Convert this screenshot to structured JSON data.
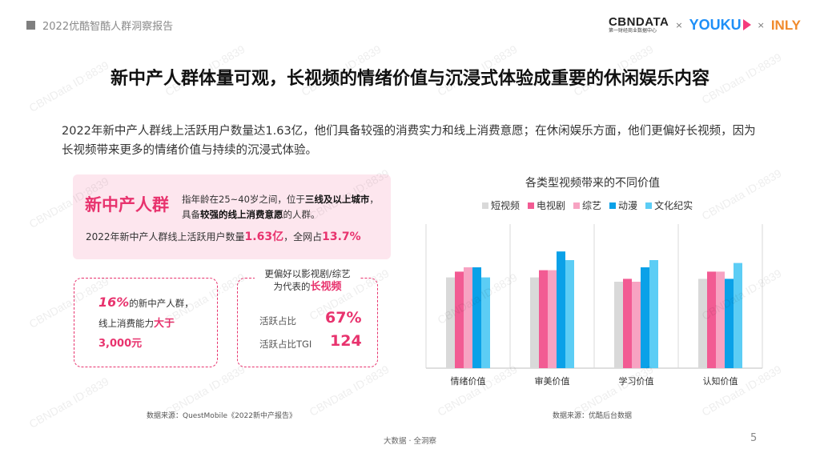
{
  "header": {
    "report_title": "2022优酷智酷人群洞察报告",
    "logos": {
      "cbndata": "CBNDATA",
      "cbndata_sub": "第一财经商业数据中心",
      "times": "×",
      "youku": "YOUKU",
      "inly": "INLY"
    }
  },
  "title": "新中产人群体量可观，长视频的情绪价值与沉浸式体验成重要的休闲娱乐内容",
  "intro": "2022年新中产人群线上活跃用户数量达1.63亿，他们具备较强的消费实力和线上消费意愿；在休闲娱乐方面，他们更偏好长视频，因为长视频带来更多的情绪价值与持续的沉浸式体验。",
  "profile": {
    "title": "新中产人群",
    "desc_1": "指年龄在25~40岁之间，位于",
    "desc_bold_1": "三线及以上城市",
    "desc_2": "，具备",
    "desc_bold_2": "较强的线上消费意愿",
    "desc_3": "的人群。",
    "stat_prefix": "2022年新中产人群线上活跃用户数量",
    "stat_value": "1.63亿",
    "stat_mid": "，全网占",
    "stat_share": "13.7%"
  },
  "box_left": {
    "pct": "16%",
    "line1": "的新中产人群，",
    "line2": "线上消费能力",
    "highlight": "大于",
    "amount": "3,000元"
  },
  "box_right": {
    "head_line1": "更偏好以影视剧/综艺",
    "head_line2": "为代表的",
    "head_highlight": "长视频",
    "metrics": [
      {
        "label": "活跃占比",
        "value": "67%"
      },
      {
        "label": "活跃占比TGI",
        "value": "124"
      }
    ]
  },
  "sources": {
    "left": "数据来源：QuestMobile《2022新中产报告》",
    "right": "数据来源：优酷后台数据"
  },
  "chart_data": {
    "type": "bar",
    "title": "各类型视频带来的不同价值",
    "categories": [
      "情绪价值",
      "审美价值",
      "学习价值",
      "认知价值"
    ],
    "series": [
      {
        "name": "短视频",
        "color": "#d9d9d9",
        "values": [
          63,
          63,
          60,
          62
        ]
      },
      {
        "name": "电视剧",
        "color": "#f25b93",
        "values": [
          67,
          68,
          62,
          67
        ]
      },
      {
        "name": "综艺",
        "color": "#f7a3c2",
        "values": [
          70,
          68,
          60,
          67
        ]
      },
      {
        "name": "动漫",
        "color": "#0aa1e8",
        "values": [
          70,
          81,
          70,
          62
        ]
      },
      {
        "name": "文化纪实",
        "color": "#5ccdf5",
        "values": [
          63,
          75,
          75,
          73
        ]
      }
    ],
    "ylim": [
      0,
      100
    ],
    "grid": false,
    "legend_position": "top"
  },
  "footer": "大数据 · 全洞察",
  "page_number": "5",
  "watermark": "CBNData ID:8839"
}
